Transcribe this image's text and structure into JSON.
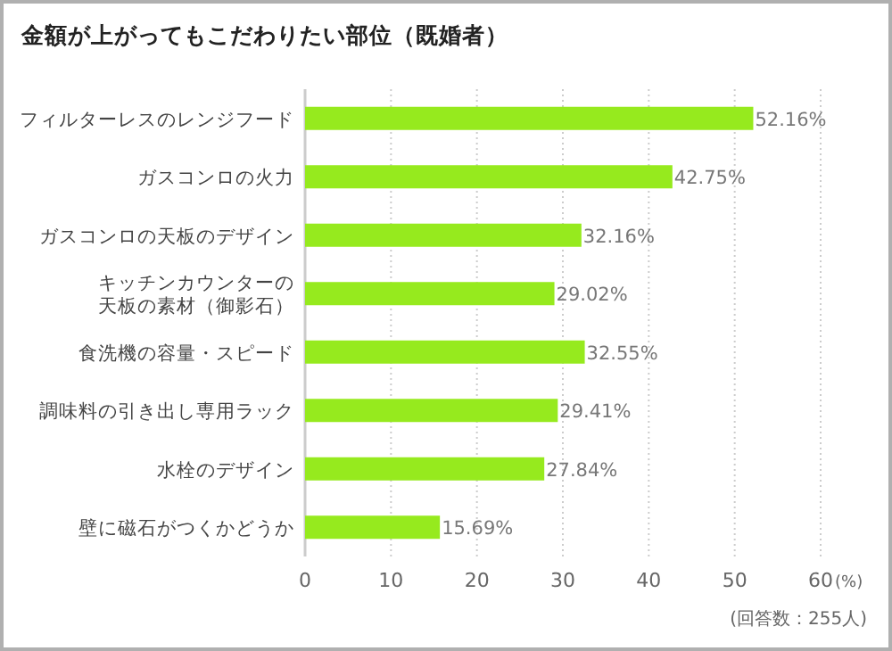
{
  "chart_data": {
    "type": "bar",
    "orientation": "horizontal",
    "title": "金額が上がってもこだわりたい部位（既婚者）",
    "categories": [
      "フィルターレスのレンジフード",
      "ガスコンロの火力",
      "ガスコンロの天板のデザイン",
      "キッチンカウンターの天板の素材（御影石）",
      "食洗機の容量・スピード",
      "調味料の引き出し専用ラック",
      "水栓のデザイン",
      "壁に磁石がつくかどうか"
    ],
    "values": [
      52.16,
      42.75,
      32.16,
      29.02,
      32.55,
      29.41,
      27.84,
      15.69
    ],
    "value_labels": [
      "52.16%",
      "42.75%",
      "32.16%",
      "29.02%",
      "32.55%",
      "29.41%",
      "27.84%",
      "15.69%"
    ],
    "color": "#96ea1e",
    "xlim": [
      0,
      60
    ],
    "xticks": [
      0,
      10,
      20,
      30,
      40,
      50,
      60
    ],
    "xlabel": "(%)",
    "grid": "x",
    "annotations": [
      "(回答数：255人)"
    ]
  }
}
